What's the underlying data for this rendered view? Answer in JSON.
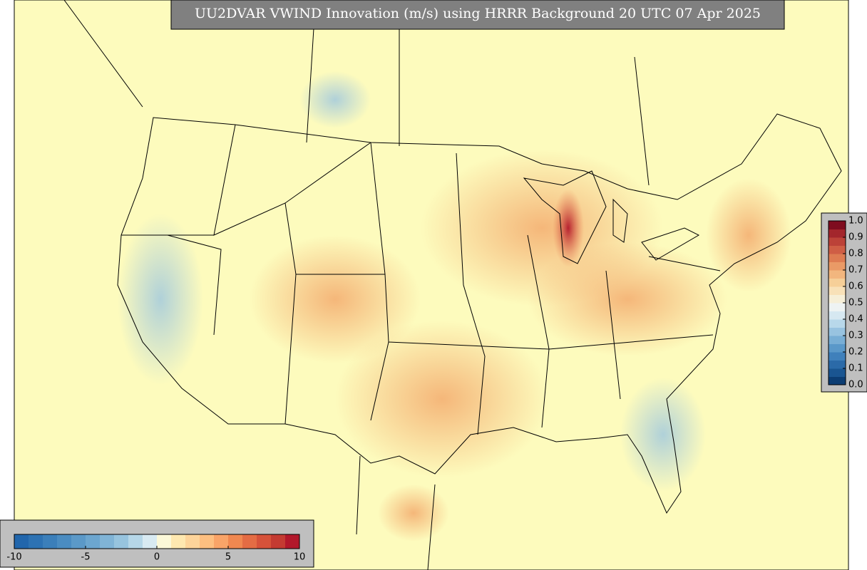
{
  "map": {
    "title": "UU2DVAR VWIND Innovation (m/s) using HRRR Background 20 UTC 07 Apr 2025"
  },
  "colorbar_horizontal": {
    "lim": [
      -10,
      10
    ],
    "ticks": [
      -10,
      -5,
      0,
      5,
      10
    ],
    "colors": [
      "#2166ac",
      "#2d72b3",
      "#3b7fba",
      "#4a8cc1",
      "#5b99c8",
      "#6ca6cf",
      "#80b4d6",
      "#97c4de",
      "#b6d7e8",
      "#d8eaf2",
      "#fbf8d8",
      "#fee8b0",
      "#fdd49a",
      "#fdbf80",
      "#f9a468",
      "#f08850",
      "#e46c44",
      "#d6523a",
      "#c43b32",
      "#b2182b"
    ]
  },
  "colorbar_vertical": {
    "lim": [
      0,
      1
    ],
    "ticks": [
      {
        "value": 0,
        "label": "0.0"
      },
      0.1,
      0.2,
      0.3,
      0.4,
      0.5,
      0.6,
      0.7,
      0.8,
      0.9,
      {
        "value": 1,
        "label": "1.0"
      }
    ],
    "colors": [
      "#0c3d73",
      "#1a5591",
      "#2b6aa8",
      "#3f80bb",
      "#5a98c9",
      "#78aed5",
      "#98c3e0",
      "#b8d8ea",
      "#d6e8f1",
      "#eef3f3",
      "#f6efd8",
      "#f8e1b8",
      "#f6cf98",
      "#f2b67e",
      "#ea9a66",
      "#de7c52",
      "#cf5e45",
      "#bc4238",
      "#a3262c",
      "#7f0d1f"
    ]
  }
}
